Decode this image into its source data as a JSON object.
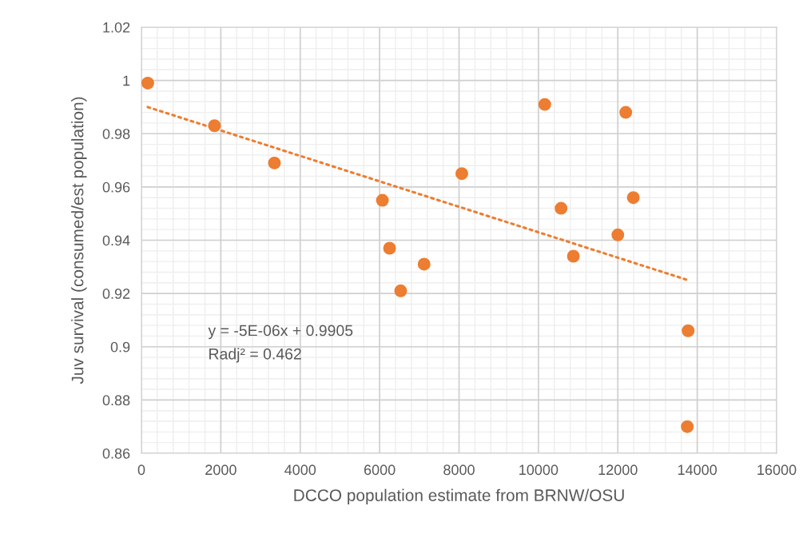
{
  "chart_data": {
    "type": "scatter",
    "xlabel": "DCCO population estimate from BRNW/OSU",
    "ylabel": "Juv survival (consumed/est population)",
    "xlim": [
      0,
      16000
    ],
    "xticks": [
      0,
      2000,
      4000,
      6000,
      8000,
      10000,
      12000,
      14000,
      16000
    ],
    "ylim": [
      0.86,
      1.02
    ],
    "yticks": [
      {
        "value": 0.86,
        "label": "0.86"
      },
      {
        "value": 0.88,
        "label": "0.88"
      },
      {
        "value": 0.9,
        "label": "0.9"
      },
      {
        "value": 0.92,
        "label": "0.92"
      },
      {
        "value": 0.94,
        "label": "0.94"
      },
      {
        "value": 0.96,
        "label": "0.96"
      },
      {
        "value": 0.98,
        "label": "0.98"
      },
      {
        "value": 1.0,
        "label": "1"
      },
      {
        "value": 1.02,
        "label": "1.02"
      }
    ],
    "grid": true,
    "marker": "circle",
    "series": [
      {
        "color": "#ed7d31",
        "x": [
          160,
          1840,
          3350,
          6070,
          6250,
          7120,
          6530,
          8070,
          10160,
          12200,
          10570,
          12390,
          12000,
          10880,
          13770,
          13750
        ],
        "values": [
          0.999,
          0.983,
          0.969,
          0.955,
          0.937,
          0.931,
          0.921,
          0.965,
          0.991,
          0.988,
          0.952,
          0.956,
          0.942,
          0.934,
          0.906,
          0.87
        ]
      },
      {
        "type": "line",
        "color": "#ed7d31",
        "line_style": "dotted",
        "marker": "none",
        "x": [
          160,
          13770
        ],
        "values": [
          0.99,
          0.925
        ]
      }
    ],
    "annotations": [
      "y = -5E-06x + 0.9905",
      "Radj² = 0.462"
    ]
  }
}
